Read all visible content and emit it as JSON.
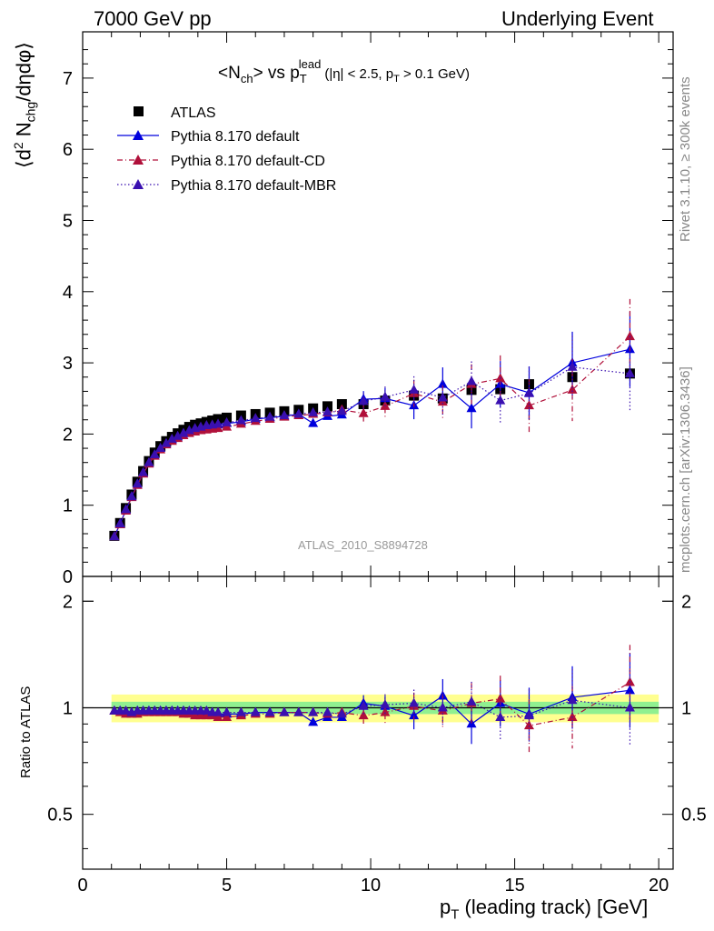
{
  "header": {
    "left": "7000 GeV pp",
    "right": "Underlying Event"
  },
  "side_labels": {
    "rivet": "Rivet 3.1.10, ≥ 300k events",
    "mcplots": "mcplots.cern.ch [arXiv:1306.3436]"
  },
  "colors": {
    "atlas": "#000000",
    "default": "#0000dd",
    "cd": "#b0103a",
    "mbr": "#3a10b0",
    "band_inner": "#90f090",
    "band_outer": "#ffff90",
    "watermark": "#999999"
  },
  "chart_data": [
    {
      "type": "scatter",
      "title": "<N_ch> vs p_T^lead (|η| < 2.5, p_T > 0.1 GeV)",
      "title_parts": {
        "main": "<N",
        "sub1": "ch",
        "mid": "> vs p",
        "sub2": "T",
        "sup2": "lead",
        "cond1": "(|η| < 2.5, p",
        "sub3": "T",
        "cond2": " > 0.1 GeV)"
      },
      "ylabel": "⟨d² N_chg/dηdφ⟩",
      "ylabel_parts": {
        "a": "⟨d",
        "sup": "2",
        "b": " N",
        "sub": "chg",
        "c": "/dηdφ⟩"
      },
      "watermark": "ATLAS_2010_S8894728",
      "xlim": [
        0,
        20.5
      ],
      "ylim": [
        0,
        7.65
      ],
      "yticks": [
        0,
        1,
        2,
        3,
        4,
        5,
        6,
        7
      ],
      "legend_position": "top-left",
      "legend": [
        "ATLAS",
        "Pythia 8.170 default",
        "Pythia 8.170 default-CD",
        "Pythia 8.170 default-MBR"
      ],
      "x": [
        1.1,
        1.3,
        1.5,
        1.7,
        1.9,
        2.1,
        2.3,
        2.5,
        2.7,
        2.9,
        3.1,
        3.3,
        3.5,
        3.7,
        3.9,
        4.1,
        4.3,
        4.5,
        4.7,
        5.0,
        5.5,
        6.0,
        6.5,
        7.0,
        7.5,
        8.0,
        8.5,
        9.0,
        9.75,
        10.5,
        11.5,
        12.5,
        13.5,
        14.5,
        15.5,
        17.0,
        19.0
      ],
      "series": [
        {
          "name": "ATLAS",
          "values": [
            0.57,
            0.75,
            0.96,
            1.15,
            1.33,
            1.48,
            1.62,
            1.74,
            1.83,
            1.9,
            1.96,
            2.01,
            2.06,
            2.1,
            2.13,
            2.15,
            2.17,
            2.19,
            2.21,
            2.23,
            2.26,
            2.28,
            2.3,
            2.32,
            2.34,
            2.36,
            2.39,
            2.42,
            2.42,
            2.47,
            2.54,
            2.5,
            2.62,
            2.63,
            2.7,
            2.8,
            2.85
          ]
        },
        {
          "name": "Pythia 8.170 default",
          "values": [
            0.56,
            0.74,
            0.93,
            1.12,
            1.3,
            1.45,
            1.59,
            1.71,
            1.8,
            1.86,
            1.92,
            1.96,
            2.01,
            2.04,
            2.07,
            2.09,
            2.11,
            2.12,
            2.13,
            2.15,
            2.17,
            2.21,
            2.23,
            2.25,
            2.28,
            2.15,
            2.25,
            2.27,
            2.49,
            2.5,
            2.4,
            2.7,
            2.36,
            2.7,
            2.58,
            3.0,
            3.19
          ]
        },
        {
          "name": "Pythia 8.170 default-CD",
          "values": [
            0.56,
            0.73,
            0.92,
            1.11,
            1.28,
            1.44,
            1.58,
            1.69,
            1.78,
            1.85,
            1.9,
            1.94,
            1.98,
            2.01,
            2.03,
            2.05,
            2.06,
            2.07,
            2.08,
            2.1,
            2.14,
            2.18,
            2.21,
            2.24,
            2.26,
            2.28,
            2.3,
            2.34,
            2.29,
            2.39,
            2.57,
            2.45,
            2.7,
            2.78,
            2.4,
            2.62,
            3.37
          ]
        },
        {
          "name": "Pythia 8.170 default-MBR",
          "values": [
            0.56,
            0.74,
            0.94,
            1.12,
            1.3,
            1.46,
            1.6,
            1.71,
            1.8,
            1.87,
            1.93,
            1.97,
            2.01,
            2.05,
            2.08,
            2.1,
            2.12,
            2.13,
            2.14,
            2.16,
            2.19,
            2.22,
            2.24,
            2.26,
            2.28,
            2.3,
            2.31,
            2.32,
            2.46,
            2.52,
            2.62,
            2.51,
            2.74,
            2.47,
            2.57,
            2.94,
            2.85
          ]
        }
      ]
    },
    {
      "type": "scatter",
      "xlabel": "p_T (leading track) [GeV]",
      "xlabel_parts": {
        "a": "p",
        "sub": "T",
        "b": " (leading track) [GeV]"
      },
      "ylabel": "Ratio to ATLAS",
      "xlim": [
        0,
        20.5
      ],
      "ylim": [
        0.35,
        2.35
      ],
      "yticks": [
        0.5,
        1,
        2
      ],
      "xticks": [
        0,
        5,
        10,
        15,
        20
      ],
      "log_y": true,
      "bands": {
        "inner_halfwidth": 0.04,
        "outer_halfwidth": 0.09
      },
      "series": [
        {
          "name": "Pythia 8.170 default",
          "values": [
            0.98,
            0.98,
            0.97,
            0.97,
            0.98,
            0.98,
            0.98,
            0.98,
            0.98,
            0.98,
            0.98,
            0.98,
            0.98,
            0.97,
            0.97,
            0.97,
            0.97,
            0.97,
            0.96,
            0.96,
            0.96,
            0.97,
            0.97,
            0.97,
            0.97,
            0.91,
            0.94,
            0.94,
            1.03,
            1.01,
            0.95,
            1.08,
            0.9,
            1.03,
            0.96,
            1.07,
            1.12
          ]
        },
        {
          "name": "Pythia 8.170 default-CD",
          "values": [
            0.98,
            0.97,
            0.96,
            0.96,
            0.96,
            0.97,
            0.97,
            0.97,
            0.97,
            0.97,
            0.97,
            0.97,
            0.96,
            0.96,
            0.95,
            0.95,
            0.95,
            0.95,
            0.94,
            0.94,
            0.95,
            0.96,
            0.96,
            0.97,
            0.97,
            0.97,
            0.96,
            0.97,
            0.95,
            0.97,
            1.01,
            0.98,
            1.03,
            1.06,
            0.89,
            0.94,
            1.18
          ]
        },
        {
          "name": "Pythia 8.170 default-MBR",
          "values": [
            0.98,
            0.98,
            0.98,
            0.97,
            0.98,
            0.98,
            0.98,
            0.98,
            0.98,
            0.98,
            0.98,
            0.98,
            0.98,
            0.98,
            0.98,
            0.98,
            0.98,
            0.97,
            0.97,
            0.97,
            0.97,
            0.97,
            0.97,
            0.97,
            0.97,
            0.97,
            0.97,
            0.96,
            1.01,
            1.02,
            1.03,
            1.0,
            1.04,
            0.94,
            0.95,
            1.05,
            1.0
          ]
        }
      ]
    }
  ]
}
